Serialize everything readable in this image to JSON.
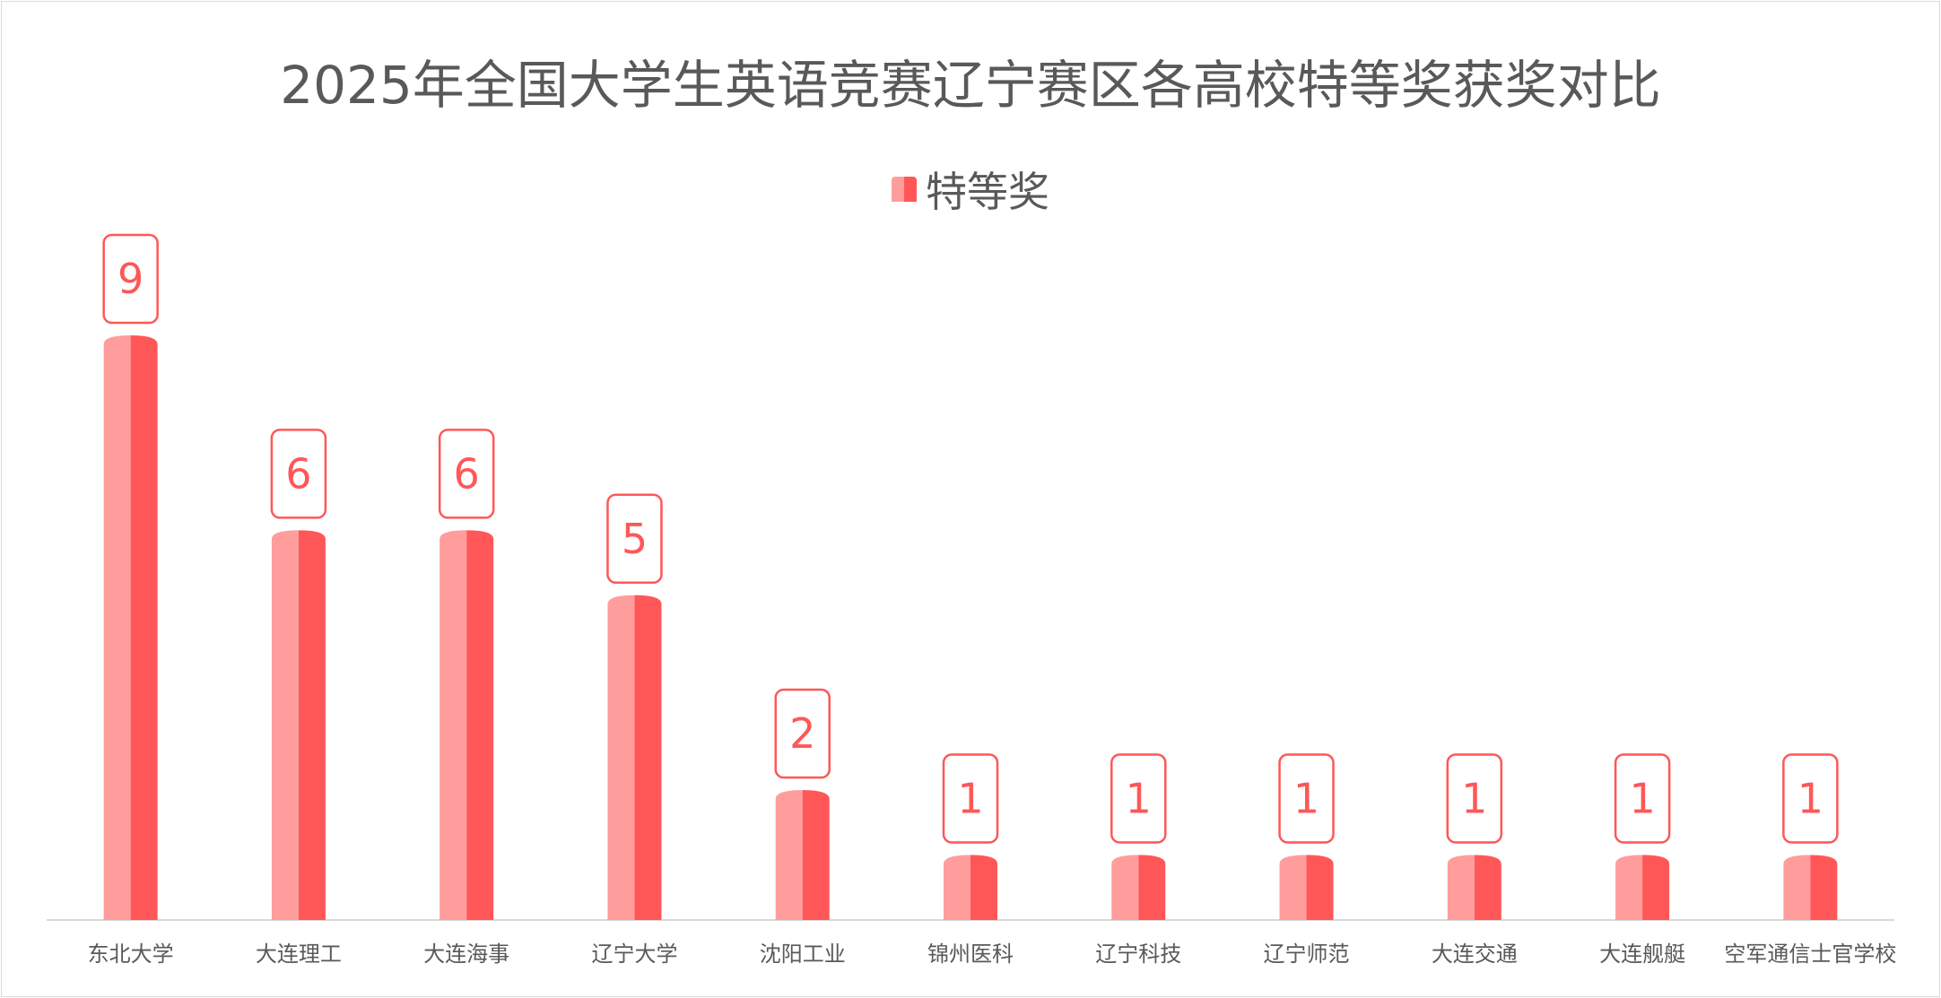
{
  "chart_data": {
    "type": "bar",
    "title": "2025年全国大学生英语竞赛辽宁赛区各高校特等奖获奖对比",
    "categories": [
      "东北大学",
      "大连理工",
      "大连海事",
      "辽宁大学",
      "沈阳工业",
      "锦州医科",
      "辽宁科技",
      "辽宁师范",
      "大连交通",
      "大连舰艇",
      "空军通信士官学校"
    ],
    "series": [
      {
        "name": "特等奖",
        "values": [
          9,
          6,
          6,
          5,
          2,
          1,
          1,
          1,
          1,
          1,
          1
        ]
      }
    ],
    "xlabel": "",
    "ylabel": "",
    "ylim": [
      0,
      9
    ],
    "grid": false,
    "legend": "top-center",
    "data_labels": true,
    "colors": {
      "bar_light": "#ff9d9d",
      "bar_dark": "#ff5757",
      "label": "#ff5757",
      "axis": "#d9d9d9",
      "text": "#595959"
    }
  }
}
